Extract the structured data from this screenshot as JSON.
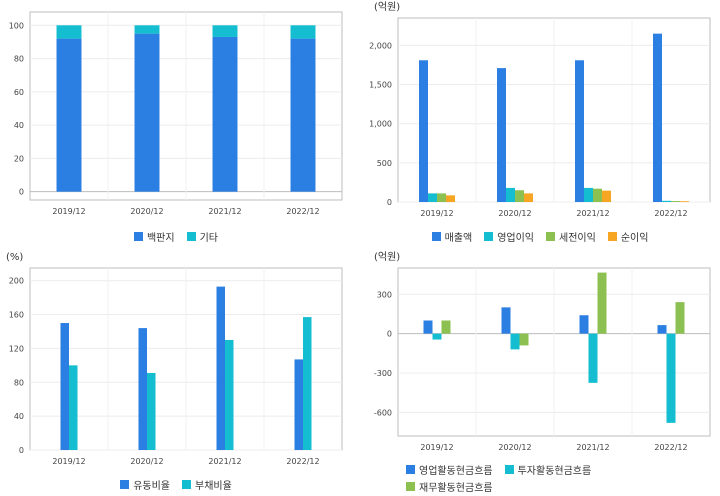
{
  "chart_data": [
    {
      "type": "bar",
      "stacked": true,
      "categories": [
        "2019/12",
        "2020/12",
        "2021/12",
        "2022/12"
      ],
      "series": [
        {
          "name": "백판지",
          "values": [
            92,
            95,
            93,
            92
          ],
          "color": "#2b7ee2"
        },
        {
          "name": "기타",
          "values": [
            8,
            5,
            7,
            8
          ],
          "color": "#14bdd0"
        }
      ],
      "yticks": [
        0,
        20,
        40,
        60,
        80,
        100
      ],
      "ytick_labels": [
        "0",
        "20",
        "40",
        "60",
        "80",
        "100"
      ],
      "ylim": [
        -5,
        108
      ],
      "unit": "",
      "grid": true,
      "legend": "bottom"
    },
    {
      "type": "bar",
      "categories": [
        "2019/12",
        "2020/12",
        "2021/12",
        "2022/12"
      ],
      "series": [
        {
          "name": "매출액",
          "values": [
            1810,
            1710,
            1810,
            2150
          ],
          "color": "#2b7ee2"
        },
        {
          "name": "영업이익",
          "values": [
            110,
            180,
            180,
            15
          ],
          "color": "#14bdd0"
        },
        {
          "name": "세전이익",
          "values": [
            110,
            150,
            170,
            12
          ],
          "color": "#8cc152"
        },
        {
          "name": "순이익",
          "values": [
            85,
            110,
            145,
            10
          ],
          "color": "#f6a623"
        }
      ],
      "yticks": [
        0,
        500,
        1000,
        1500,
        2000
      ],
      "ytick_labels": [
        "0",
        "500",
        "1,000",
        "1,500",
        "2,000"
      ],
      "ylim": [
        0,
        2350
      ],
      "unit": "(억원)",
      "grid": true,
      "legend": "bottom"
    },
    {
      "type": "bar",
      "categories": [
        "2019/12",
        "2020/12",
        "2021/12",
        "2022/12"
      ],
      "series": [
        {
          "name": "유동비율",
          "values": [
            150,
            144,
            193,
            107
          ],
          "color": "#2b7ee2"
        },
        {
          "name": "부채비율",
          "values": [
            100,
            91,
            130,
            157
          ],
          "color": "#14bdd0"
        }
      ],
      "yticks": [
        0,
        40,
        80,
        120,
        160,
        200
      ],
      "ytick_labels": [
        "0",
        "40",
        "80",
        "120",
        "160",
        "200"
      ],
      "ylim": [
        0,
        215
      ],
      "unit": "(%)",
      "grid": true,
      "legend": "bottom"
    },
    {
      "type": "bar",
      "categories": [
        "2019/12",
        "2020/12",
        "2021/12",
        "2022/12"
      ],
      "series": [
        {
          "name": "영업활동현금흐름",
          "values": [
            100,
            200,
            140,
            65
          ],
          "color": "#2b7ee2"
        },
        {
          "name": "투자활동현금흐름",
          "values": [
            -45,
            -120,
            -375,
            -680
          ],
          "color": "#14bdd0"
        },
        {
          "name": "재무활동현금흐름",
          "values": [
            100,
            -90,
            465,
            240
          ],
          "color": "#8cc152"
        }
      ],
      "yticks": [
        -600,
        -300,
        0,
        300
      ],
      "ytick_labels": [
        "-600",
        "-300",
        "0",
        "300"
      ],
      "ylim": [
        -780,
        500
      ],
      "unit": "(억원)",
      "grid": true,
      "legend": "bottom"
    }
  ]
}
